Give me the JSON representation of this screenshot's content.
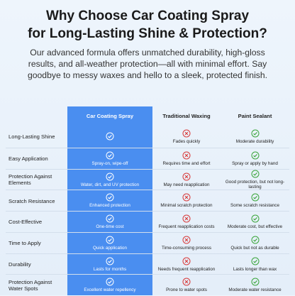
{
  "header": {
    "title_lines": [
      "Why Choose Car Coating Spray",
      "for Long-Lasting Shine & Protection?"
    ],
    "intro": "Our advanced formula offers unmatched durability, high-gloss results, and all-weather protection—all with minimal effort. Say goodbye to messy waxes and hello to a sleek, protected finish."
  },
  "table": {
    "columns": [
      "Car Coating Spray",
      "Traditional Waxing",
      "Paint Sealant"
    ],
    "rows": [
      {
        "feature": "Long-Lasting Shine",
        "cells": [
          null,
          "Fades quickly",
          "Moderate durability"
        ]
      },
      {
        "feature": "Easy Application",
        "cells": [
          "Spray-on, wipe-off",
          "Requires time and effort",
          "Spray or apply by hand"
        ]
      },
      {
        "feature": "Protection Against Elements",
        "cells": [
          "Water, dirt, and UV protection",
          "May need reapplication",
          "Good protection, but not long-lasting"
        ]
      },
      {
        "feature": "Scratch Resistance",
        "cells": [
          "Enhanced protection",
          "Minimal scratch protection",
          "Some scratch resistance"
        ]
      },
      {
        "feature": "Cost-Effective",
        "cells": [
          "One-time cost",
          "Frequent reapplication costs",
          "Moderate cost, but effective"
        ]
      },
      {
        "feature": "Time to Apply",
        "cells": [
          "Quick application",
          "Time-consuming process",
          "Quick but not as durable"
        ]
      },
      {
        "feature": "Durability",
        "cells": [
          "Lasts for months",
          "Needs frequent reapplication",
          "Lasts longer than wax"
        ]
      },
      {
        "feature": "Protection Against Water Spots",
        "cells": [
          "Excellent water repellency",
          "Prone to water spots",
          "Moderate water resistance"
        ]
      }
    ]
  }
}
